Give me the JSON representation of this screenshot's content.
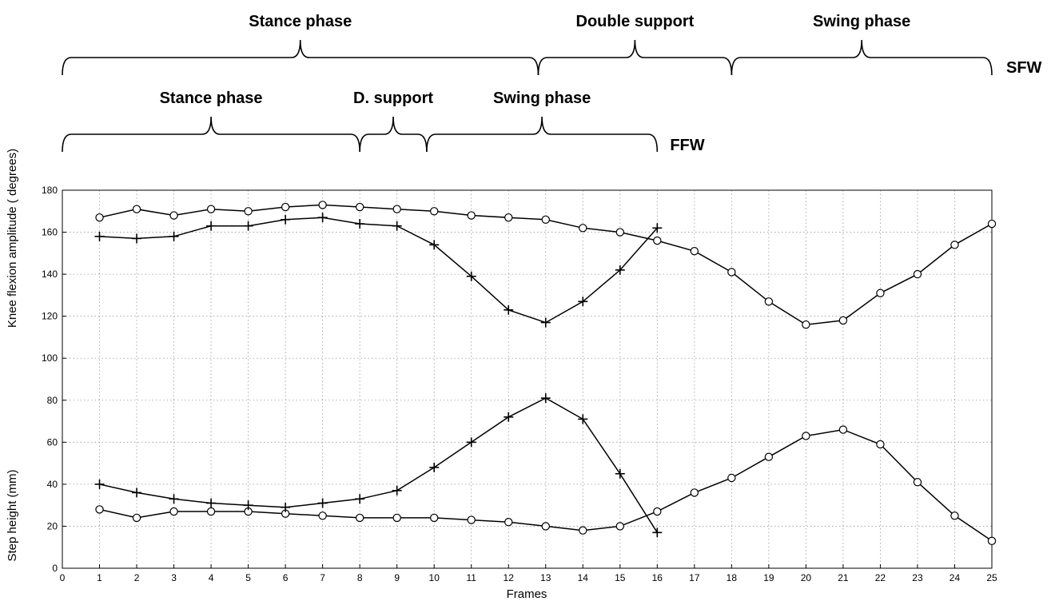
{
  "annotations": {
    "sfw": {
      "label": "SFW",
      "phases": [
        {
          "name": "Stance phase",
          "from": 0,
          "to": 12.8
        },
        {
          "name": "Double support",
          "from": 12.8,
          "to": 18
        },
        {
          "name": "Swing phase",
          "from": 18,
          "to": 25
        }
      ]
    },
    "ffw": {
      "label": "FFW",
      "phases": [
        {
          "name": "Stance phase",
          "from": 0,
          "to": 8
        },
        {
          "name": "D. support",
          "from": 8,
          "to": 9.8
        },
        {
          "name": "Swing phase",
          "from": 9.8,
          "to": 16
        }
      ]
    }
  },
  "chart_data": {
    "type": "line",
    "title": "",
    "xlabel": "Frames",
    "ylabel_top": "Knee flexion amplitude ( degrees)",
    "ylabel_bottom": "Step height (mm)",
    "xlim": [
      0,
      25
    ],
    "ylim": [
      0,
      180
    ],
    "xticks": [
      0,
      1,
      2,
      3,
      4,
      5,
      6,
      7,
      8,
      9,
      10,
      11,
      12,
      13,
      14,
      15,
      16,
      17,
      18,
      19,
      20,
      21,
      22,
      23,
      24,
      25
    ],
    "yticks": [
      0,
      20,
      40,
      60,
      80,
      100,
      120,
      140,
      160,
      180
    ],
    "grid": true,
    "series": [
      {
        "marker": "circle",
        "x": [
          1,
          2,
          3,
          4,
          5,
          6,
          7,
          8,
          9,
          10,
          11,
          12,
          13,
          14,
          15,
          16,
          17,
          18,
          19,
          20,
          21,
          22,
          23,
          24,
          25
        ],
        "y": [
          167,
          171,
          168,
          171,
          170,
          172,
          173,
          172,
          171,
          170,
          168,
          167,
          166,
          162,
          160,
          156,
          151,
          141,
          127,
          116,
          118,
          131,
          140,
          154,
          164
        ]
      },
      {
        "marker": "plus",
        "x": [
          1,
          2,
          3,
          4,
          5,
          6,
          7,
          8,
          9,
          10,
          11,
          12,
          13,
          14,
          15,
          16
        ],
        "y": [
          158,
          157,
          158,
          163,
          163,
          166,
          167,
          164,
          163,
          154,
          139,
          123,
          117,
          127,
          142,
          162
        ]
      },
      {
        "marker": "circle",
        "x": [
          1,
          2,
          3,
          4,
          5,
          6,
          7,
          8,
          9,
          10,
          11,
          12,
          13,
          14,
          15,
          16,
          17,
          18,
          19,
          20,
          21,
          22,
          23,
          24,
          25
        ],
        "y": [
          28,
          24,
          27,
          27,
          27,
          26,
          25,
          24,
          24,
          24,
          23,
          22,
          20,
          18,
          20,
          27,
          36,
          43,
          53,
          63,
          66,
          59,
          41,
          25,
          13
        ]
      },
      {
        "marker": "plus",
        "x": [
          1,
          2,
          3,
          4,
          5,
          6,
          7,
          8,
          9,
          10,
          11,
          12,
          13,
          14,
          15,
          16
        ],
        "y": [
          40,
          36,
          33,
          31,
          30,
          29,
          31,
          33,
          37,
          48,
          60,
          72,
          81,
          71,
          45,
          17
        ]
      }
    ]
  }
}
